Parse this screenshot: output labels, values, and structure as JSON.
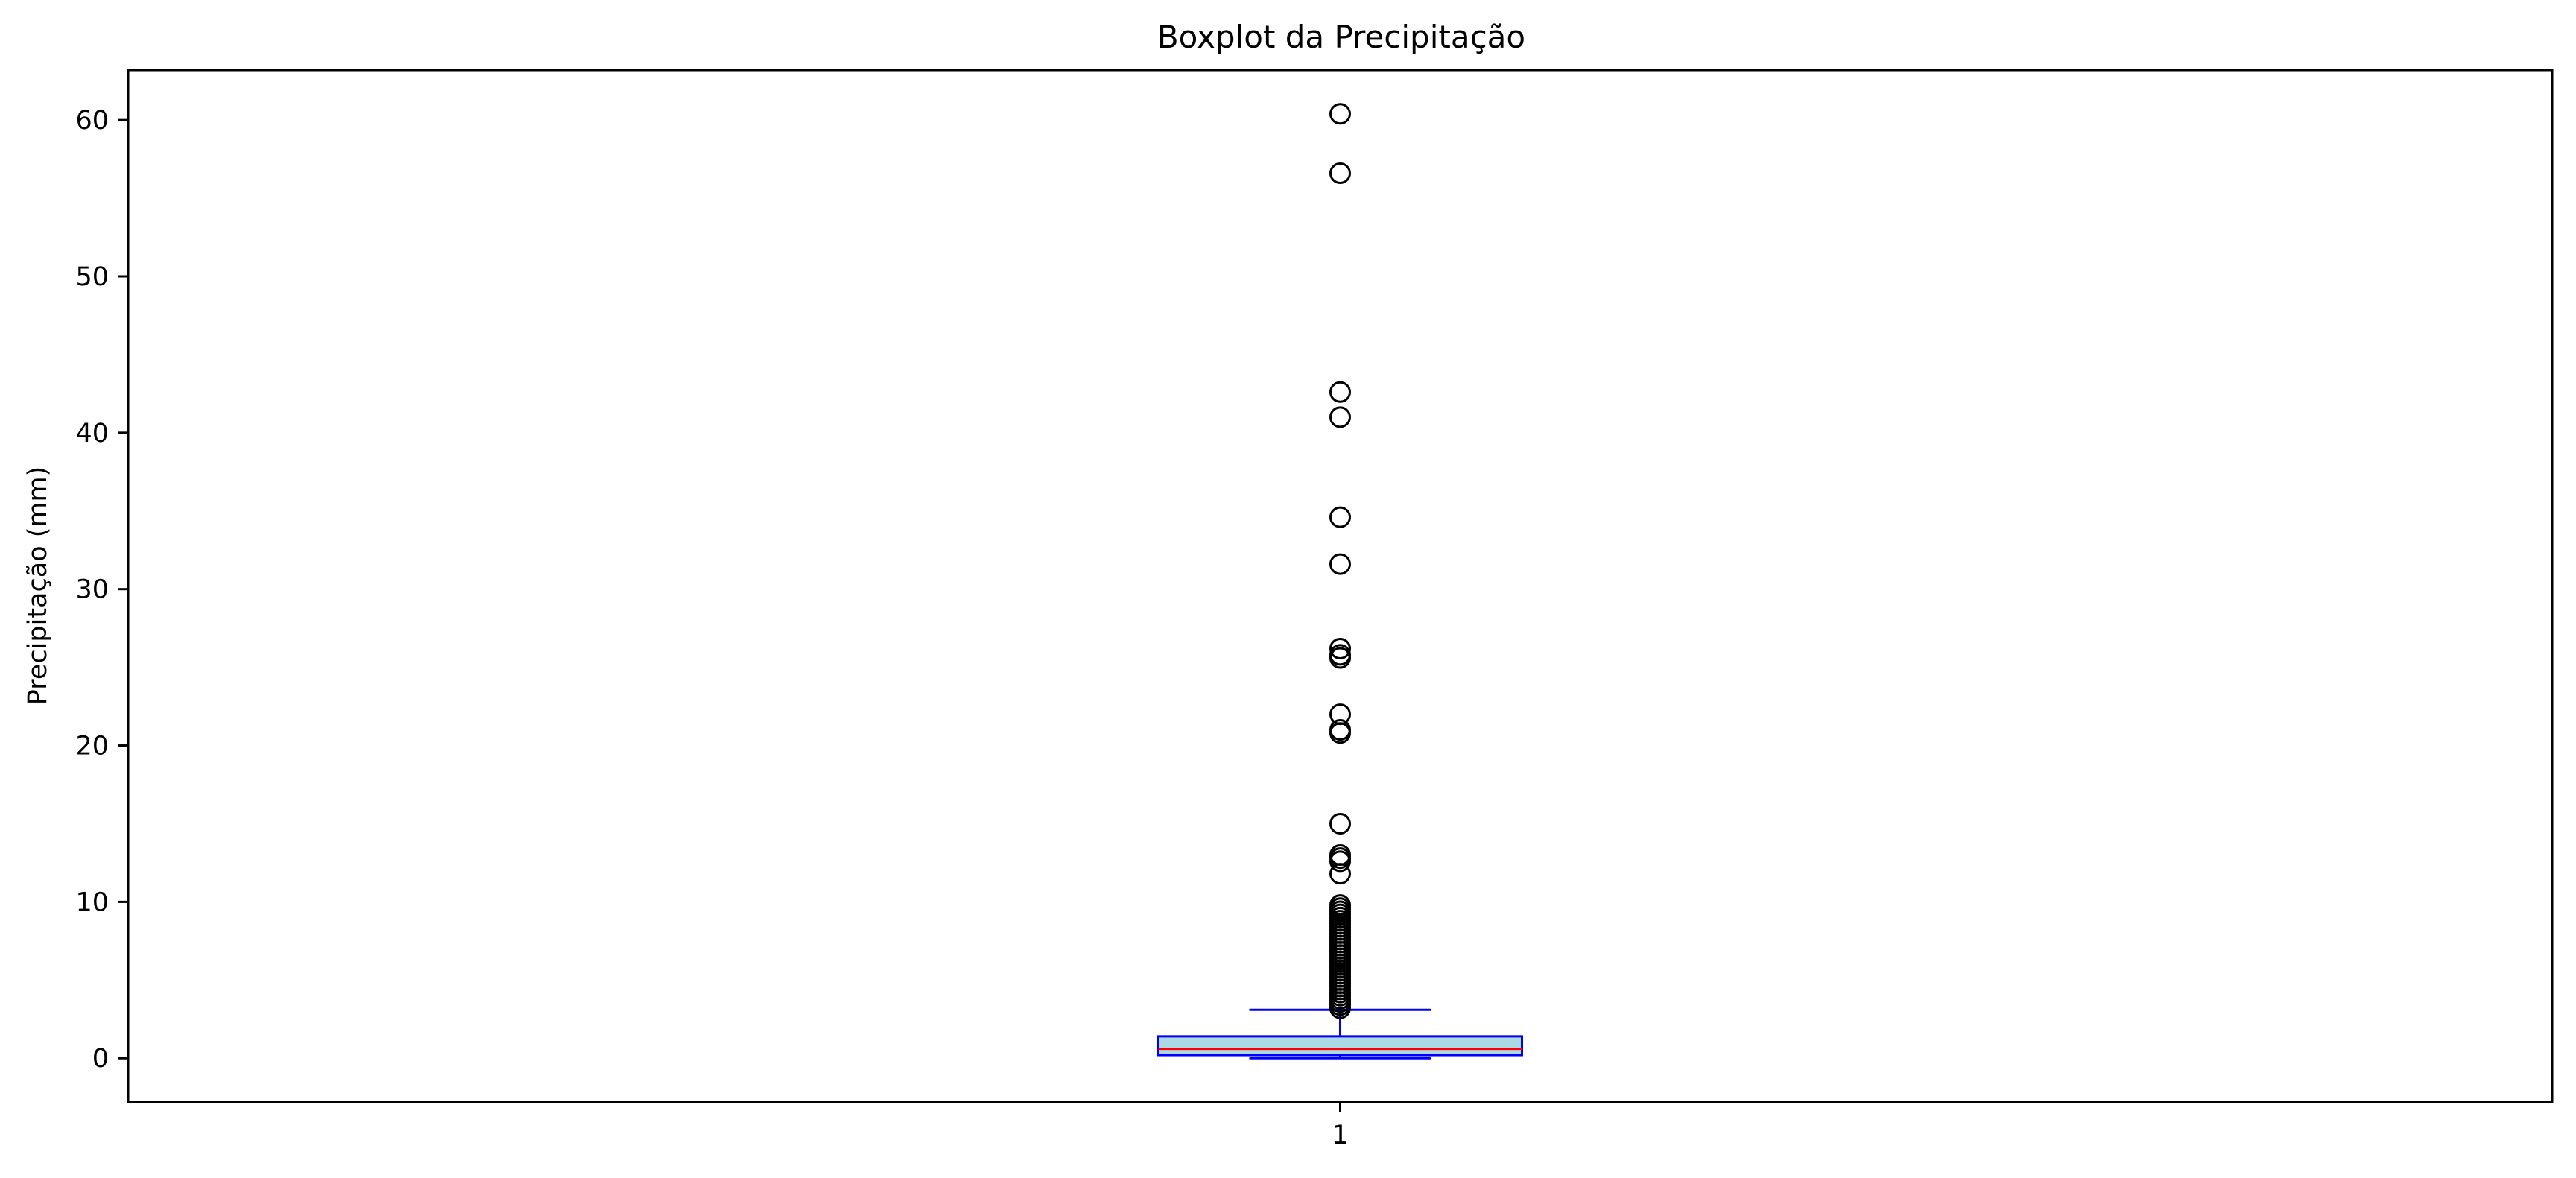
{
  "chart_data": {
    "type": "boxplot",
    "title": "Boxplot da Precipitação",
    "xlabel": "",
    "ylabel": "Precipitação (mm)",
    "categories": [
      "1"
    ],
    "ylim": [
      -2.8,
      63.2
    ],
    "yticks": [
      0,
      10,
      20,
      30,
      40,
      50,
      60
    ],
    "grid": false,
    "box": {
      "q1": 0.2,
      "median": 0.6,
      "q3": 1.4,
      "whisker_low": 0.0,
      "whisker_high": 3.1
    },
    "outliers": [
      60.4,
      56.6,
      42.6,
      41.0,
      34.6,
      31.6,
      26.2,
      25.8,
      25.6,
      22.0,
      21.0,
      20.8,
      15.0,
      13.0,
      12.8,
      12.6,
      11.8,
      9.8,
      9.6,
      9.4,
      9.2,
      9.0,
      8.8,
      8.6,
      8.4,
      8.2,
      8.0,
      7.8,
      7.6,
      7.4,
      7.2,
      7.0,
      6.8,
      6.6,
      6.4,
      6.2,
      6.0,
      5.8,
      5.6,
      5.4,
      5.2,
      5.0,
      4.8,
      4.6,
      4.4,
      4.2,
      4.0,
      3.8,
      3.6,
      3.4,
      3.2
    ],
    "colors": {
      "box_edge": "#0000ff",
      "box_fill": "#add8e6",
      "median": "#ff0000",
      "whisker": "#0000ff",
      "outlier_edge": "#000000"
    }
  }
}
